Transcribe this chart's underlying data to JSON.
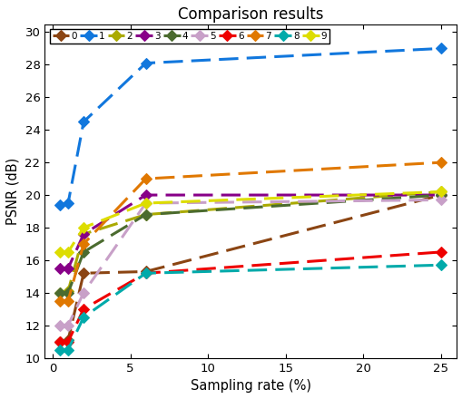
{
  "title": "Comparison results",
  "xlabel": "Sampling rate (%)",
  "ylabel": "PSNR (dB)",
  "xlim": [
    -0.5,
    26
  ],
  "ylim": [
    10,
    30.5
  ],
  "x": [
    0.5,
    1,
    2,
    6,
    25
  ],
  "series": [
    {
      "label": "0",
      "color": "#8B4513",
      "values": [
        11.0,
        11.1,
        15.2,
        15.3,
        20.0
      ]
    },
    {
      "label": "1",
      "color": "#1177DD",
      "values": [
        19.4,
        19.5,
        24.5,
        28.1,
        29.0
      ]
    },
    {
      "label": "2",
      "color": "#AAAA00",
      "values": [
        14.0,
        14.1,
        17.6,
        18.8,
        20.2
      ]
    },
    {
      "label": "3",
      "color": "#880088",
      "values": [
        15.5,
        15.5,
        17.6,
        20.0,
        20.0
      ]
    },
    {
      "label": "4",
      "color": "#4B6B2F",
      "values": [
        14.0,
        14.0,
        16.5,
        18.8,
        20.0
      ]
    },
    {
      "label": "5",
      "color": "#C8A0C8",
      "values": [
        12.0,
        12.0,
        14.0,
        19.5,
        19.7
      ]
    },
    {
      "label": "6",
      "color": "#EE0000",
      "values": [
        11.0,
        11.0,
        13.0,
        15.2,
        16.5
      ]
    },
    {
      "label": "7",
      "color": "#E07800",
      "values": [
        13.5,
        13.5,
        17.0,
        21.0,
        22.0
      ]
    },
    {
      "label": "8",
      "color": "#00AAAA",
      "values": [
        10.5,
        10.5,
        12.5,
        15.2,
        15.7
      ]
    },
    {
      "label": "9",
      "color": "#DDDD00",
      "values": [
        16.5,
        16.5,
        18.0,
        19.5,
        20.2
      ]
    }
  ]
}
